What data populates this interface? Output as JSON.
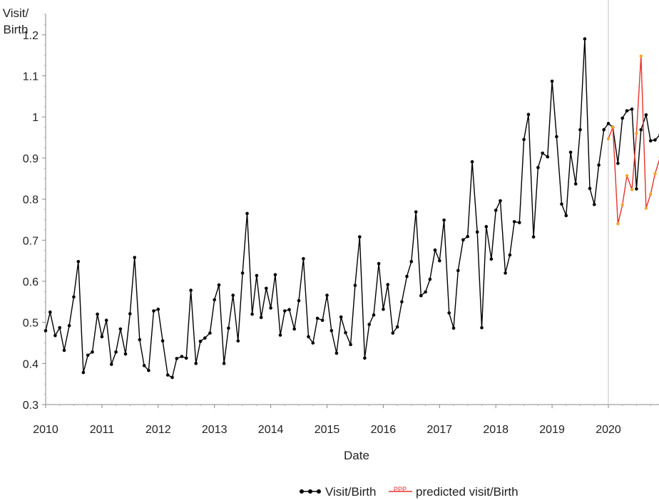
{
  "chart_data": {
    "type": "line",
    "title": "",
    "xlabel": "Date",
    "ylabel": "Visit/\nBirth",
    "ylabel_lines": [
      "Visit/",
      "Birth"
    ],
    "xlim": [
      2010,
      2020.9
    ],
    "ylim": [
      0.3,
      1.25
    ],
    "x_ticks": [
      2010,
      2011,
      2012,
      2013,
      2014,
      2015,
      2016,
      2017,
      2018,
      2019,
      2020
    ],
    "x_tick_labels": [
      "2010",
      "2011",
      "2012",
      "2013",
      "2014",
      "2015",
      "2016",
      "2017",
      "2018",
      "2019",
      "2020"
    ],
    "y_ticks": [
      0.3,
      0.4,
      0.5,
      0.6,
      0.7,
      0.8,
      0.9,
      1,
      1.1,
      1.2
    ],
    "y_tick_labels": [
      "0.3",
      "0.4",
      "0.5",
      "0.6",
      "0.7",
      "0.8",
      "0.9",
      "1",
      "1.1",
      "1.2"
    ],
    "vertical_reference_line_x": 2020,
    "legend_placement": "bottom",
    "grid": false,
    "series": [
      {
        "name": "Visit/Birth",
        "color": "#000000",
        "x": [
          2010.0,
          2010.08,
          2010.17,
          2010.25,
          2010.33,
          2010.42,
          2010.5,
          2010.58,
          2010.67,
          2010.75,
          2010.83,
          2010.92,
          2011.0,
          2011.08,
          2011.17,
          2011.25,
          2011.33,
          2011.42,
          2011.5,
          2011.58,
          2011.67,
          2011.75,
          2011.83,
          2011.92,
          2012.0,
          2012.08,
          2012.17,
          2012.25,
          2012.33,
          2012.42,
          2012.5,
          2012.58,
          2012.67,
          2012.75,
          2012.83,
          2012.92,
          2013.0,
          2013.08,
          2013.17,
          2013.25,
          2013.33,
          2013.42,
          2013.5,
          2013.58,
          2013.67,
          2013.75,
          2013.83,
          2013.92,
          2014.0,
          2014.08,
          2014.17,
          2014.25,
          2014.33,
          2014.42,
          2014.5,
          2014.58,
          2014.67,
          2014.75,
          2014.83,
          2014.92,
          2015.0,
          2015.08,
          2015.17,
          2015.25,
          2015.33,
          2015.42,
          2015.5,
          2015.58,
          2015.67,
          2015.75,
          2015.83,
          2015.92,
          2016.0,
          2016.08,
          2016.17,
          2016.25,
          2016.33,
          2016.42,
          2016.5,
          2016.58,
          2016.67,
          2016.75,
          2016.83,
          2016.92,
          2017.0,
          2017.08,
          2017.17,
          2017.25,
          2017.33,
          2017.42,
          2017.5,
          2017.58,
          2017.67,
          2017.75,
          2017.83,
          2017.92,
          2018.0,
          2018.08,
          2018.17,
          2018.25,
          2018.33,
          2018.42,
          2018.5,
          2018.58,
          2018.67,
          2018.75,
          2018.83,
          2018.92,
          2019.0,
          2019.08,
          2019.17,
          2019.25,
          2019.33,
          2019.42,
          2019.5,
          2019.58,
          2019.67,
          2019.75,
          2019.83,
          2019.92,
          2020.0,
          2020.08,
          2020.17,
          2020.25,
          2020.33,
          2020.42,
          2020.5,
          2020.58,
          2020.67,
          2020.75,
          2020.83,
          2020.92
        ],
        "values": [
          0.48,
          0.525,
          0.468,
          0.487,
          0.432,
          0.492,
          0.562,
          0.648,
          0.378,
          0.42,
          0.428,
          0.52,
          0.465,
          0.505,
          0.398,
          0.428,
          0.484,
          0.423,
          0.521,
          0.658,
          0.458,
          0.395,
          0.383,
          0.528,
          0.532,
          0.455,
          0.372,
          0.366,
          0.412,
          0.417,
          0.413,
          0.578,
          0.4,
          0.454,
          0.462,
          0.474,
          0.555,
          0.591,
          0.4,
          0.486,
          0.566,
          0.455,
          0.62,
          0.765,
          0.52,
          0.614,
          0.512,
          0.583,
          0.535,
          0.616,
          0.469,
          0.528,
          0.531,
          0.484,
          0.553,
          0.655,
          0.465,
          0.45,
          0.51,
          0.505,
          0.566,
          0.48,
          0.425,
          0.513,
          0.475,
          0.446,
          0.59,
          0.708,
          0.413,
          0.495,
          0.518,
          0.643,
          0.532,
          0.592,
          0.474,
          0.489,
          0.55,
          0.612,
          0.648,
          0.769,
          0.565,
          0.574,
          0.605,
          0.676,
          0.65,
          0.749,
          0.523,
          0.486,
          0.626,
          0.701,
          0.709,
          0.891,
          0.72,
          0.487,
          0.733,
          0.654,
          0.773,
          0.796,
          0.62,
          0.664,
          0.745,
          0.743,
          0.945,
          1.006,
          0.708,
          0.877,
          0.912,
          0.903,
          1.087,
          0.952,
          0.788,
          0.76,
          0.914,
          0.837,
          0.969,
          1.19,
          0.826,
          0.787,
          0.883,
          0.969,
          0.984,
          0.975,
          0.887,
          0.997,
          1.015,
          1.019,
          0.825,
          0.969,
          1.005,
          0.942,
          0.944,
          0.957
        ]
      },
      {
        "name": "predicted visit/Birth",
        "color": "#e8332a",
        "marker_color": "#f5a623",
        "x": [
          2020.0,
          2020.08,
          2020.17,
          2020.25,
          2020.33,
          2020.42,
          2020.5,
          2020.58,
          2020.67,
          2020.75,
          2020.83,
          2020.92
        ],
        "values": [
          0.947,
          0.975,
          0.74,
          0.786,
          0.857,
          0.823,
          0.96,
          1.148,
          0.778,
          0.812,
          0.862,
          0.902
        ]
      }
    ]
  }
}
